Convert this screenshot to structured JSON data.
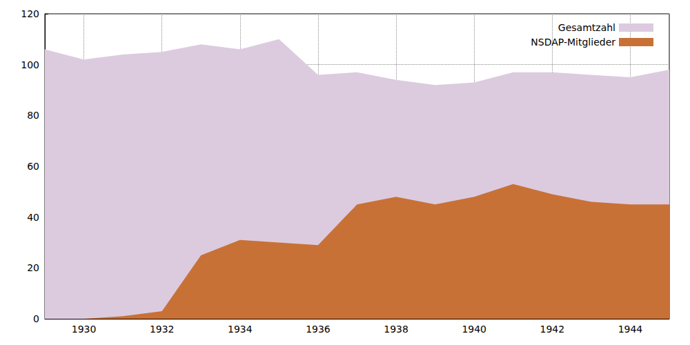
{
  "chart_data": {
    "type": "area",
    "x": [
      1929,
      1930,
      1931,
      1932,
      1933,
      1934,
      1935,
      1936,
      1937,
      1938,
      1939,
      1940,
      1941,
      1942,
      1943,
      1944,
      1945
    ],
    "series": [
      {
        "name": "Gesamtzahl",
        "color": "#dccbdf",
        "values": [
          106,
          102,
          104,
          105,
          108,
          106,
          110,
          96,
          97,
          94,
          92,
          93,
          97,
          97,
          96,
          95,
          98
        ]
      },
      {
        "name": "NSDAP-Mitglieder",
        "color": "#c87137",
        "values": [
          0,
          0,
          1,
          3,
          25,
          31,
          30,
          29,
          45,
          48,
          45,
          48,
          53,
          49,
          46,
          45,
          45
        ]
      }
    ],
    "xlim": [
      1929,
      1945
    ],
    "xticks": [
      1930,
      1932,
      1934,
      1936,
      1938,
      1940,
      1942,
      1944
    ],
    "ylim": [
      0,
      120
    ],
    "yticks": [
      0,
      20,
      40,
      60,
      80,
      100,
      120
    ],
    "grid": true,
    "legend": "upper right",
    "stacked": false
  }
}
